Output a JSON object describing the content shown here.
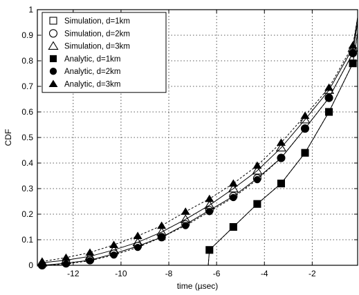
{
  "chart_data": {
    "type": "line",
    "xlabel": "time (µsec)",
    "ylabel": "CDF",
    "xlim": [
      -13.5,
      -0.1
    ],
    "ylim": [
      0,
      1
    ],
    "x_ticks": [
      -12,
      -10,
      -8,
      -6,
      -4,
      -2
    ],
    "y_ticks": [
      0,
      0.1,
      0.2,
      0.3,
      0.4,
      0.5,
      0.6,
      0.7,
      0.8,
      0.9,
      1
    ],
    "y_tick_labels": [
      "0",
      "0.1",
      "0.2",
      "0.3",
      "0.4",
      "0.5",
      "0.6",
      "0.7",
      "0.8",
      "0.9",
      "1"
    ],
    "grid": true,
    "legend_position": "top-left",
    "series": [
      {
        "name": "Simulation, d=1km",
        "kind": "simulation",
        "marker": "square",
        "filled": false,
        "line": "solid",
        "x": [
          -6.3,
          -5.3,
          -4.3,
          -3.3,
          -2.3,
          -1.3,
          -0.3
        ],
        "y": [
          0.06,
          0.15,
          0.24,
          0.32,
          0.44,
          0.6,
          0.79
        ]
      },
      {
        "name": "Simulation, d=2km",
        "kind": "simulation",
        "marker": "circle",
        "filled": false,
        "line": "solid",
        "x": [
          -13.3,
          -12.3,
          -11.3,
          -10.3,
          -9.3,
          -8.3,
          -7.3,
          -6.3,
          -5.3,
          -4.3,
          -3.3,
          -2.3,
          -1.3,
          -0.3
        ],
        "y": [
          0.0,
          0.008,
          0.02,
          0.045,
          0.075,
          0.11,
          0.16,
          0.215,
          0.27,
          0.34,
          0.42,
          0.535,
          0.655,
          0.83
        ]
      },
      {
        "name": "Simulation, d=3km",
        "kind": "simulation",
        "marker": "triangle",
        "filled": false,
        "line": "solid",
        "x": [
          -13.3,
          -12.3,
          -11.3,
          -10.3,
          -9.3,
          -8.3,
          -7.3,
          -6.3,
          -5.3,
          -4.3,
          -3.3,
          -2.3,
          -1.3,
          -0.3
        ],
        "y": [
          0.01,
          0.02,
          0.035,
          0.06,
          0.09,
          0.13,
          0.18,
          0.235,
          0.3,
          0.37,
          0.46,
          0.57,
          0.685,
          0.85
        ]
      },
      {
        "name": "Analytic, d=1km",
        "kind": "analytic",
        "marker": "square",
        "filled": true,
        "line": "dashed",
        "x": [
          -6.3,
          -5.3,
          -4.3,
          -3.3,
          -2.3,
          -1.3,
          -0.3
        ],
        "y": [
          0.06,
          0.15,
          0.24,
          0.32,
          0.44,
          0.6,
          0.79
        ]
      },
      {
        "name": "Analytic, d=2km",
        "kind": "analytic",
        "marker": "circle",
        "filled": true,
        "line": "dashed",
        "x": [
          -13.3,
          -12.3,
          -11.3,
          -10.3,
          -9.3,
          -8.3,
          -7.3,
          -6.3,
          -5.3,
          -4.3,
          -3.3,
          -2.3,
          -1.3,
          -0.3
        ],
        "y": [
          0.0,
          0.005,
          0.018,
          0.04,
          0.07,
          0.11,
          0.155,
          0.21,
          0.265,
          0.335,
          0.42,
          0.535,
          0.655,
          0.83
        ]
      },
      {
        "name": "Analytic, d=3km",
        "kind": "analytic",
        "marker": "triangle",
        "filled": true,
        "line": "dashed",
        "x": [
          -13.3,
          -12.3,
          -11.3,
          -10.3,
          -9.3,
          -8.3,
          -7.3,
          -6.3,
          -5.3,
          -4.3,
          -3.3,
          -2.3,
          -1.3,
          -0.3
        ],
        "y": [
          0.015,
          0.03,
          0.05,
          0.08,
          0.115,
          0.155,
          0.21,
          0.26,
          0.32,
          0.39,
          0.48,
          0.585,
          0.695,
          0.86
        ]
      }
    ]
  }
}
